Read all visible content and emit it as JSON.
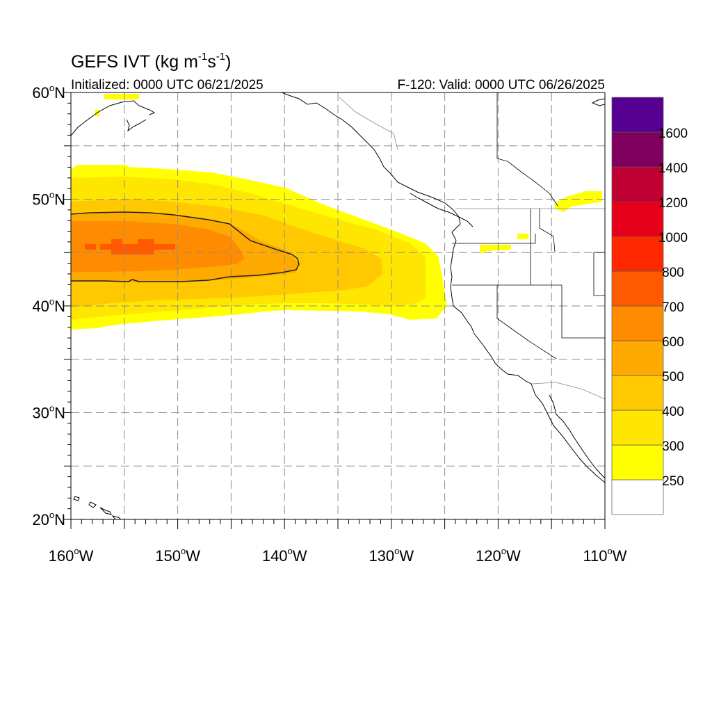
{
  "title": {
    "main": "GEFS IVT (kg m",
    "exp1": "-1",
    "mid": "s",
    "exp2": "-1",
    "close": ")"
  },
  "subtitle_left": "Initialized: 0000 UTC 06/21/2025",
  "subtitle_right": "F-120: Valid: 0000 UTC 06/26/2025",
  "map": {
    "lon_range": [
      -160,
      -110
    ],
    "lat_range": [
      20,
      60
    ],
    "lat_labels": [
      {
        "num": "20",
        "deg": "o",
        "dir": "N"
      },
      {
        "num": "30",
        "deg": "o",
        "dir": "N"
      },
      {
        "num": "40",
        "deg": "o",
        "dir": "N"
      },
      {
        "num": "50",
        "deg": "o",
        "dir": "N"
      },
      {
        "num": "60",
        "deg": "o",
        "dir": "N"
      }
    ],
    "lon_labels": [
      {
        "num": "160",
        "deg": "o",
        "dir": "W"
      },
      {
        "num": "150",
        "deg": "o",
        "dir": "W"
      },
      {
        "num": "140",
        "deg": "o",
        "dir": "W"
      },
      {
        "num": "130",
        "deg": "o",
        "dir": "W"
      },
      {
        "num": "120",
        "deg": "o",
        "dir": "W"
      },
      {
        "num": "110",
        "deg": "o",
        "dir": "W"
      }
    ],
    "contour_level": 500
  },
  "colorbar": {
    "colors": [
      "#ffffff",
      "#ffff00",
      "#ffe600",
      "#ffc800",
      "#ffaa00",
      "#ff8c00",
      "#ff5a00",
      "#ff2800",
      "#e6001a",
      "#c00033",
      "#800060",
      "#550090"
    ],
    "labels": [
      "250",
      "300",
      "400",
      "500",
      "600",
      "700",
      "800",
      "1000",
      "1200",
      "1400",
      "1600"
    ]
  }
}
